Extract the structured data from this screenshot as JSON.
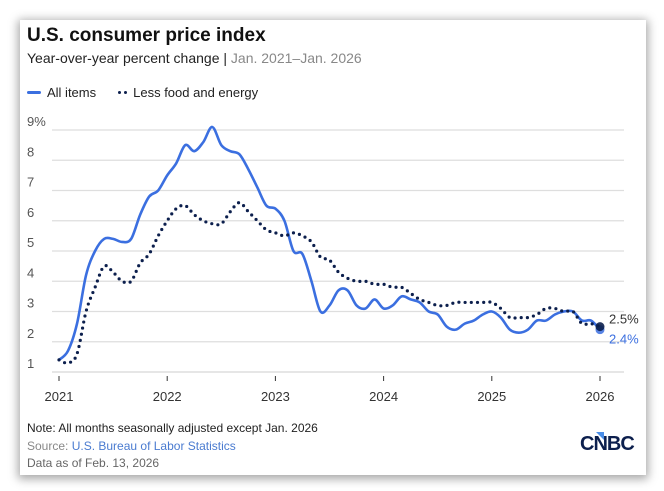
{
  "chart_data": {
    "type": "line",
    "title": "U.S. consumer price index",
    "subtitle": "Year-over-year percent change",
    "subtitle_range": "Jan. 2021–Jan. 2026",
    "xlabel": "",
    "ylabel": "",
    "ylim": [
      1,
      9
    ],
    "yticks": [
      "9%",
      "8",
      "7",
      "6",
      "5",
      "4",
      "3",
      "2",
      "1"
    ],
    "ytick_values": [
      9,
      8,
      7,
      6,
      5,
      4,
      3,
      2,
      1
    ],
    "xticks": [
      "2021",
      "2022",
      "2023",
      "2024",
      "2025",
      "2026"
    ],
    "x_start": "Jan. 2021",
    "x_end": "Jan. 2026",
    "grid": true,
    "legend_position": "top-left",
    "series": [
      {
        "name": "All items",
        "style": "solid",
        "color": "#3b6fe0",
        "end_label": "2.4%",
        "values": [
          1.4,
          1.7,
          2.6,
          4.2,
          5.0,
          5.4,
          5.4,
          5.3,
          5.4,
          6.2,
          6.8,
          7.0,
          7.5,
          7.9,
          8.5,
          8.3,
          8.6,
          9.1,
          8.5,
          8.3,
          8.2,
          7.7,
          7.1,
          6.5,
          6.4,
          6.0,
          5.0,
          4.9,
          4.0,
          3.0,
          3.2,
          3.7,
          3.7,
          3.2,
          3.1,
          3.4,
          3.1,
          3.2,
          3.5,
          3.4,
          3.3,
          3.0,
          2.9,
          2.5,
          2.4,
          2.6,
          2.7,
          2.9,
          3.0,
          2.8,
          2.4,
          2.3,
          2.4,
          2.7,
          2.7,
          2.9,
          3.0,
          3.0,
          2.7,
          2.7,
          2.4
        ]
      },
      {
        "name": "Less food and energy",
        "style": "dotted",
        "color": "#0c1f4d",
        "end_label": "2.5%",
        "values": [
          1.4,
          1.3,
          1.6,
          3.0,
          3.8,
          4.5,
          4.3,
          4.0,
          4.0,
          4.6,
          4.9,
          5.5,
          6.0,
          6.4,
          6.5,
          6.2,
          6.0,
          5.9,
          5.9,
          6.3,
          6.6,
          6.3,
          6.0,
          5.7,
          5.6,
          5.5,
          5.6,
          5.5,
          5.3,
          4.8,
          4.7,
          4.3,
          4.1,
          4.0,
          4.0,
          3.9,
          3.9,
          3.8,
          3.8,
          3.6,
          3.4,
          3.3,
          3.2,
          3.2,
          3.3,
          3.3,
          3.3,
          3.3,
          3.3,
          3.1,
          2.8,
          2.8,
          2.8,
          2.9,
          3.1,
          3.1,
          3.0,
          3.0,
          2.6,
          2.6,
          2.5
        ]
      }
    ]
  },
  "footer": {
    "note": "Note: All months seasonally adjusted except Jan. 2026",
    "source_label": "Source: ",
    "source_link": "U.S. Bureau of Labor Statistics",
    "as_of": "Data as of Feb. 13, 2026"
  },
  "brand": {
    "logo_text": "CNBC"
  }
}
